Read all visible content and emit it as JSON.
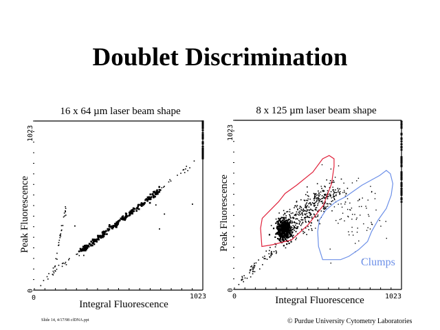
{
  "title": "Doublet Discrimination",
  "footer": {
    "slide_note": "Slide 14, 4/17/98 cfDNA.ppt",
    "copyright": "© Purdue University Cytometry Laboratories"
  },
  "colors": {
    "singlet_gate": "#e0203a",
    "clumps_gate": "#6b8fe8",
    "points": "#000000"
  },
  "chart_data": [
    {
      "type": "scatter",
      "title": "16 x 64 µm laser beam shape",
      "xlabel": "Integral Fluorescence",
      "ylabel": "Peak Fluorescence",
      "xlim": [
        0,
        1023
      ],
      "ylim": [
        0,
        1023
      ],
      "x_tick_labels": [
        "0",
        "1023"
      ],
      "y_tick_labels": [
        "0",
        "1023"
      ],
      "grid": false,
      "clusters": [
        {
          "name": "singlet-diagonal",
          "from": [
            42,
            50
          ],
          "to": [
            1002,
            790
          ],
          "count": 260,
          "spread": 8,
          "dense_range": [
            0.25,
            0.75
          ]
        },
        {
          "name": "doublet-line",
          "from": [
            117,
            104
          ],
          "to": [
            192,
            507
          ],
          "count": 30,
          "spread": 4
        },
        {
          "name": "edge-saturation",
          "x": 1023,
          "y_range": [
            790,
            1023
          ],
          "count": 40
        }
      ],
      "outliers": [
        [
          246,
          388
        ],
        [
          300,
          210
        ],
        [
          738,
          515
        ],
        [
          760,
          370
        ],
        [
          790,
          460
        ],
        [
          960,
          520
        ]
      ]
    },
    {
      "type": "scatter",
      "title": "8 x 125 µm laser beam shape",
      "xlabel": "Integral Fluorescence",
      "ylabel": "Peak Fluorescence",
      "xlim": [
        0,
        1023
      ],
      "ylim": [
        0,
        1023
      ],
      "x_tick_labels": [
        "0",
        "1023"
      ],
      "y_tick_labels": [
        "0",
        "1023"
      ],
      "grid": false,
      "clusters": [
        {
          "name": "singlet-core",
          "center": [
            303,
            358
          ],
          "sx": 22,
          "sy": 32,
          "count": 380
        },
        {
          "name": "singlet-tail",
          "from": [
            303,
            358
          ],
          "to": [
            610,
            600
          ],
          "count": 420,
          "spread": 40
        },
        {
          "name": "debris-line",
          "from": [
            20,
            30
          ],
          "to": [
            250,
            250
          ],
          "count": 60,
          "spread": 16
        },
        {
          "name": "clumps",
          "center": [
            700,
            440
          ],
          "sx": 110,
          "sy": 110,
          "count": 90
        },
        {
          "name": "edge-saturation",
          "x": 1023,
          "y_range": [
            520,
            1023
          ],
          "count": 60
        }
      ],
      "gates": [
        {
          "name": "singlets",
          "color_key": "singlet_gate",
          "polygon": [
            [
              168,
              260
            ],
            [
              230,
              270
            ],
            [
              350,
              300
            ],
            [
              450,
              390
            ],
            [
              545,
              510
            ],
            [
              595,
              640
            ],
            [
              610,
              745
            ],
            [
              610,
              790
            ],
            [
              580,
              810
            ],
            [
              540,
              790
            ],
            [
              480,
              710
            ],
            [
              380,
              630
            ],
            [
              310,
              580
            ],
            [
              270,
              530
            ],
            [
              230,
              490
            ],
            [
              170,
              430
            ],
            [
              160,
              370
            ]
          ]
        },
        {
          "name": "clumps",
          "label": "Clumps",
          "color_key": "clumps_gate",
          "polygon": [
            [
              540,
              180
            ],
            [
              650,
              180
            ],
            [
              700,
              200
            ],
            [
              760,
              240
            ],
            [
              815,
              290
            ],
            [
              840,
              350
            ],
            [
              880,
              420
            ],
            [
              930,
              490
            ],
            [
              960,
              570
            ],
            [
              970,
              640
            ],
            [
              955,
              700
            ],
            [
              930,
              720
            ],
            [
              890,
              690
            ],
            [
              780,
              630
            ],
            [
              680,
              560
            ],
            [
              620,
              530
            ],
            [
              560,
              480
            ],
            [
              520,
              420
            ],
            [
              510,
              350
            ],
            [
              515,
              260
            ]
          ]
        }
      ]
    }
  ]
}
